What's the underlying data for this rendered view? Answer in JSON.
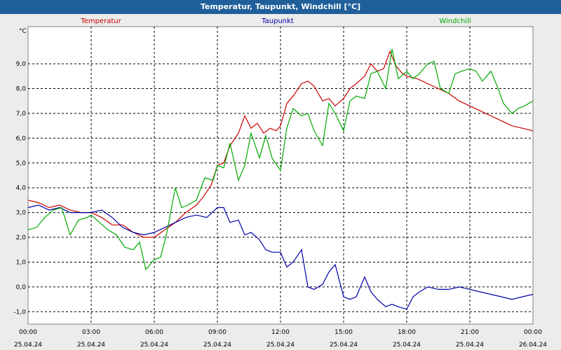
{
  "window": {
    "title": "Temperatur, Taupunkt, Windchill [°C]"
  },
  "chart_data": {
    "type": "line",
    "title": "Temperatur, Taupunkt, Windchill [°C]",
    "ylabel": "°C",
    "ylim": [
      -1.5,
      10.5
    ],
    "xlim": [
      0,
      24
    ],
    "grid": true,
    "yticks": [
      -1.0,
      0.0,
      1.0,
      2.0,
      3.0,
      4.0,
      5.0,
      6.0,
      7.0,
      8.0,
      9.0
    ],
    "ytick_labels": [
      "-1,0",
      "0,0",
      "1,0",
      "2,0",
      "3,0",
      "4,0",
      "5,0",
      "6,0",
      "7,0",
      "8,0",
      "9,0"
    ],
    "xticks": [
      {
        "x": 0,
        "time": "00:00",
        "date": "25.04.24"
      },
      {
        "x": 3,
        "time": "03:00",
        "date": "25.04.24"
      },
      {
        "x": 6,
        "time": "06:00",
        "date": "25.04.24"
      },
      {
        "x": 9,
        "time": "09:00",
        "date": "25.04.24"
      },
      {
        "x": 12,
        "time": "12:00",
        "date": "25.04.24"
      },
      {
        "x": 15,
        "time": "15:00",
        "date": "25.04.24"
      },
      {
        "x": 18,
        "time": "18:00",
        "date": "25.04.24"
      },
      {
        "x": 21,
        "time": "21:00",
        "date": "25.04.24"
      },
      {
        "x": 24,
        "time": "00:00",
        "date": "26.04.24"
      }
    ],
    "series": [
      {
        "name": "Temperatur",
        "color": "#cc0000",
        "x": [
          0,
          0.5,
          1,
          1.5,
          2,
          2.5,
          3,
          3.5,
          4,
          4.5,
          5,
          5.5,
          6,
          6.5,
          7,
          7.5,
          8,
          8.3,
          8.7,
          9,
          9.3,
          9.6,
          10,
          10.3,
          10.6,
          10.9,
          11.2,
          11.5,
          11.8,
          12,
          12.3,
          12.6,
          13,
          13.3,
          13.6,
          14,
          14.3,
          14.6,
          15,
          15.3,
          15.6,
          16,
          16.3,
          16.6,
          16.9,
          17.2,
          17.5,
          17.8,
          18,
          18.5,
          19,
          19.5,
          20,
          20.5,
          21,
          21.5,
          22,
          22.5,
          23,
          23.5,
          24
        ],
        "values": [
          3.5,
          3.4,
          3.2,
          3.3,
          3.1,
          3.0,
          3.0,
          2.8,
          2.5,
          2.5,
          2.2,
          2.0,
          2.0,
          2.3,
          2.6,
          3.0,
          3.3,
          3.6,
          4.1,
          4.9,
          5.0,
          5.7,
          6.2,
          6.9,
          6.4,
          6.6,
          6.2,
          6.4,
          6.3,
          6.5,
          7.4,
          7.7,
          8.2,
          8.3,
          8.1,
          7.5,
          7.6,
          7.3,
          7.6,
          8.0,
          8.2,
          8.5,
          9.0,
          8.7,
          8.8,
          9.5,
          8.9,
          8.6,
          8.5,
          8.4,
          8.2,
          8.0,
          7.8,
          7.5,
          7.3,
          7.1,
          6.9,
          6.7,
          6.5,
          6.4,
          6.3
        ]
      },
      {
        "name": "Taupunkt",
        "color": "#0000aa",
        "x": [
          0,
          0.5,
          1,
          1.5,
          2,
          2.5,
          3,
          3.5,
          4,
          4.5,
          5,
          5.5,
          6,
          6.5,
          7,
          7.5,
          8,
          8.5,
          9,
          9.3,
          9.6,
          10,
          10.3,
          10.6,
          11,
          11.3,
          11.6,
          12,
          12.3,
          12.6,
          13,
          13.3,
          13.6,
          14,
          14.3,
          14.6,
          15,
          15.3,
          15.6,
          16,
          16.3,
          16.6,
          17,
          17.3,
          17.6,
          18,
          18.3,
          18.6,
          19,
          19.5,
          20,
          20.5,
          21,
          21.5,
          22,
          22.5,
          23,
          23.5,
          24
        ],
        "values": [
          3.2,
          3.3,
          3.1,
          3.2,
          3.0,
          3.0,
          3.0,
          3.1,
          2.8,
          2.4,
          2.2,
          2.1,
          2.2,
          2.4,
          2.6,
          2.8,
          2.9,
          2.8,
          3.2,
          3.2,
          2.6,
          2.7,
          2.1,
          2.2,
          1.9,
          1.5,
          1.4,
          1.4,
          0.8,
          1.0,
          1.5,
          0.0,
          -0.1,
          0.1,
          0.6,
          0.9,
          -0.4,
          -0.5,
          -0.4,
          0.4,
          -0.2,
          -0.5,
          -0.8,
          -0.7,
          -0.8,
          -0.9,
          -0.4,
          -0.2,
          0.0,
          -0.1,
          -0.1,
          0.0,
          -0.1,
          -0.2,
          -0.3,
          -0.4,
          -0.5,
          -0.4,
          -0.3
        ]
      },
      {
        "name": "Windchill",
        "color": "#00aa00",
        "x": [
          0,
          0.4,
          0.8,
          1.2,
          1.6,
          2,
          2.4,
          2.8,
          3,
          3.4,
          3.8,
          4.2,
          4.6,
          5,
          5.3,
          5.6,
          6,
          6.3,
          6.6,
          7,
          7.3,
          7.6,
          8,
          8.4,
          8.8,
          9,
          9.3,
          9.6,
          10,
          10.3,
          10.6,
          11,
          11.3,
          11.6,
          12,
          12.3,
          12.6,
          13,
          13.3,
          13.6,
          14,
          14.3,
          14.6,
          15,
          15.3,
          15.6,
          16,
          16.3,
          16.6,
          17,
          17.3,
          17.6,
          18,
          18.3,
          18.6,
          19,
          19.3,
          19.6,
          20,
          20.3,
          20.6,
          21,
          21.3,
          21.6,
          22,
          22.3,
          22.6,
          23,
          23.3,
          23.6,
          24
        ],
        "values": [
          2.3,
          2.4,
          2.8,
          3.1,
          3.2,
          2.1,
          2.7,
          2.8,
          2.9,
          2.6,
          2.3,
          2.1,
          1.6,
          1.5,
          1.8,
          0.7,
          1.1,
          1.2,
          2.2,
          4.0,
          3.2,
          3.3,
          3.5,
          4.4,
          4.3,
          4.9,
          4.8,
          5.8,
          4.3,
          4.9,
          6.2,
          5.2,
          6.1,
          5.2,
          4.7,
          6.4,
          7.2,
          6.9,
          7.0,
          6.3,
          5.7,
          7.4,
          7.0,
          6.3,
          7.5,
          7.7,
          7.6,
          8.6,
          8.7,
          8.0,
          9.6,
          8.4,
          8.7,
          8.4,
          8.6,
          9.0,
          9.1,
          8.0,
          7.8,
          8.6,
          8.7,
          8.8,
          8.7,
          8.3,
          8.7,
          8.1,
          7.4,
          7.0,
          7.2,
          7.3,
          7.5
        ]
      }
    ]
  }
}
